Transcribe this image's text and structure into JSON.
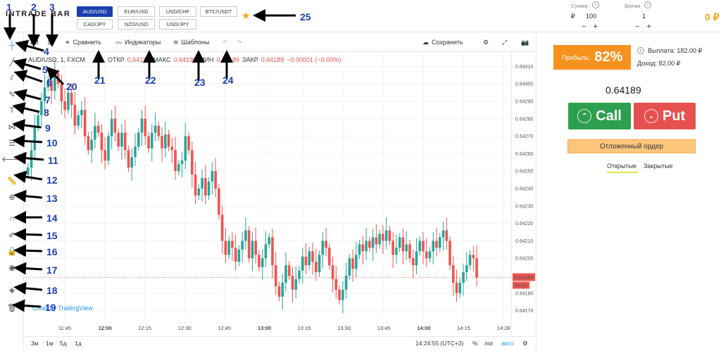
{
  "header": {
    "logo": "INTRADE BAR",
    "pairs": [
      "AUD/USD",
      "EUR/USD",
      "USD/CHF",
      "BTC/USDT",
      "CAD/JPY",
      "NZD/USD",
      "USD/JPY"
    ],
    "sum_label": "Сумма",
    "sum_currency": "₽",
    "sum_value": "100",
    "time_label": "Время",
    "time_value": "1",
    "balance": "0 ₽"
  },
  "chart_toolbar": {
    "interval": "1M",
    "compare": "Сравнить",
    "indicators": "Индикаторы",
    "templates": "Шаблоны",
    "save": "Сохранить"
  },
  "legend": {
    "symbol": "AUD/USD, 1, FXCM",
    "open_label": "ОТКР",
    "open": "0.64190",
    "high_label": "МАКС",
    "high": "0.64190",
    "low_label": "МИН",
    "low": "0.64189",
    "close_label": "ЗАКР",
    "close": "0.64189",
    "change": "−0.00001 (−0.00%)"
  },
  "chart_data": {
    "type": "candlestick",
    "ylim": [
      0.64165,
      0.64315
    ],
    "yticks": [
      "0.64310",
      "0.64300",
      "0.64290",
      "0.64280",
      "0.64270",
      "0.64260",
      "0.64250",
      "0.64240",
      "0.64230",
      "0.64220",
      "0.64210",
      "0.64200",
      "0.64190",
      "0.64180",
      "0.64170"
    ],
    "xticks": [
      "11:45",
      "12:00",
      "12:15",
      "12:30",
      "12:45",
      "13:00",
      "13:15",
      "13:30",
      "13:45",
      "14:00",
      "14:15",
      "14:28"
    ],
    "last_price": "0.64189",
    "countdown": "00:04",
    "closes": [
      0.64252,
      0.64262,
      0.64275,
      0.64282,
      0.6429,
      0.64298,
      0.64302,
      0.64296,
      0.64306,
      0.643,
      0.6429,
      0.64285,
      0.64295,
      0.64288,
      0.64276,
      0.64282,
      0.64285,
      0.6427,
      0.64262,
      0.64268,
      0.64276,
      0.64272,
      0.64262,
      0.64256,
      0.6427,
      0.6428,
      0.64272,
      0.64264,
      0.64272,
      0.64262,
      0.64252,
      0.64258,
      0.64264,
      0.64272,
      0.6428,
      0.6427,
      0.64263,
      0.64272,
      0.64276,
      0.6427,
      0.64263,
      0.64271,
      0.64264,
      0.64262,
      0.6425,
      0.64254,
      0.64256,
      0.6427,
      0.64262,
      0.64248,
      0.64236,
      0.6424,
      0.64246,
      0.64236,
      0.64244,
      0.6425,
      0.6424,
      0.64225,
      0.6421,
      0.64202,
      0.6421,
      0.64206,
      0.64198,
      0.64205,
      0.6421,
      0.64216,
      0.642,
      0.6421,
      0.64202,
      0.64195,
      0.642,
      0.64208,
      0.64212,
      0.64196,
      0.64184,
      0.64178,
      0.64186,
      0.64196,
      0.6419,
      0.64182,
      0.64188,
      0.64193,
      0.64201,
      0.64196,
      0.64204,
      0.64198,
      0.64192,
      0.64202,
      0.6421,
      0.64206,
      0.64196,
      0.64188,
      0.64182,
      0.64176,
      0.64182,
      0.6419,
      0.642,
      0.64194,
      0.64202,
      0.64208,
      0.64204,
      0.6421,
      0.64206,
      0.64212,
      0.64208,
      0.64214,
      0.6421,
      0.64216,
      0.6421,
      0.64202,
      0.64206,
      0.64212,
      0.64204,
      0.64208,
      0.642,
      0.64196,
      0.64204,
      0.6421,
      0.64204,
      0.642,
      0.64204,
      0.6421,
      0.64206,
      0.64212,
      0.64216,
      0.6421,
      0.64196,
      0.64186,
      0.6418,
      0.64186,
      0.64192,
      0.64196,
      0.64202,
      0.642,
      0.64189
    ],
    "watermark": "Chart by TradingView"
  },
  "bottom_bar": {
    "ranges": [
      "3м",
      "1м",
      "5д",
      "1д"
    ],
    "time": "14:24:55 (UTC+3)",
    "percent": "%",
    "log": "лог",
    "auto": "авто"
  },
  "right_panel": {
    "profit_label": "Прибыль:",
    "profit_value": "82%",
    "payout": "Выплата: 182.00 ₽",
    "income": "Доход: 82.00 ₽",
    "price": "0.64189",
    "call": "Call",
    "put": "Put",
    "pending": "Отложенный ордер",
    "tab_open": "Открытые",
    "tab_closed": "Закрытые"
  },
  "annotations": [
    "1",
    "2",
    "3",
    "4",
    "5",
    "6",
    "7",
    "8",
    "9",
    "10",
    "11",
    "12",
    "13",
    "14",
    "15",
    "16",
    "17",
    "18",
    "19",
    "20",
    "21",
    "22",
    "23",
    "24",
    "25"
  ],
  "colors": {
    "up": "#26a69a",
    "down": "#ef5350",
    "accent": "#f6921e",
    "call": "#2e9e4f",
    "put": "#e6504f",
    "annot": "#1a3fae"
  }
}
